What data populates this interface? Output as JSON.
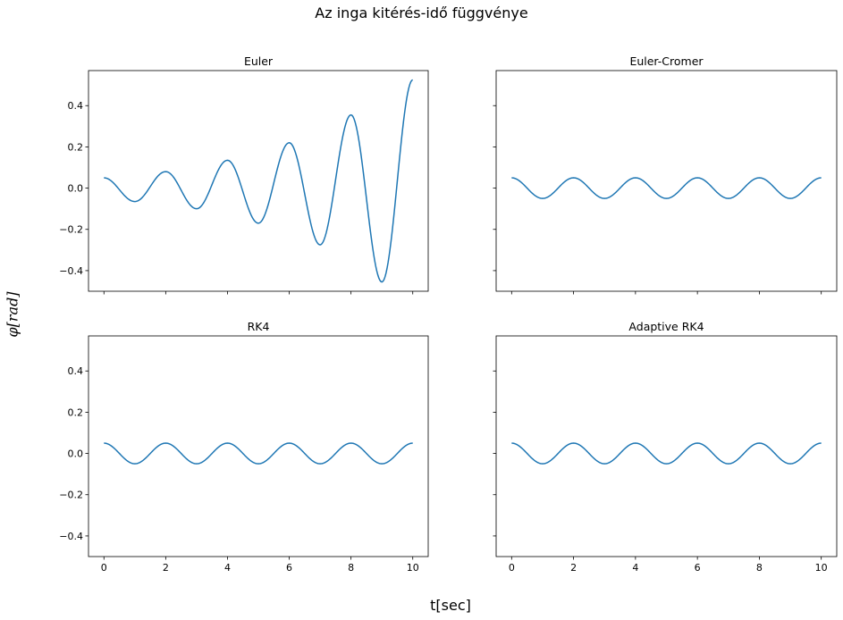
{
  "figure": {
    "suptitle": "Az inga kitérés-idő függvénye",
    "xlabel": "t[sec]",
    "ylabel_symbol": "φ",
    "ylabel_unit": "[rad]"
  },
  "colors": {
    "line": "#1f77b4",
    "axes": "#000000"
  },
  "chart_data": [
    {
      "type": "line",
      "title": "Euler",
      "xlim": [
        -0.5,
        10.5
      ],
      "ylim": [
        -0.5,
        0.57
      ],
      "xticks": [
        0,
        2,
        4,
        6,
        8,
        10
      ],
      "yticks": [
        -0.4,
        -0.2,
        0.0,
        0.2,
        0.4
      ],
      "xtick_labels": [
        "0",
        "2",
        "4",
        "6",
        "8",
        "10"
      ],
      "ytick_labels": [
        "−0.4",
        "−0.2",
        "0.0",
        "0.2",
        "0.4"
      ],
      "show_x_labels": false,
      "show_y_labels": true,
      "series": [
        {
          "x": [
            0,
            0.5,
            1,
            1.5,
            2,
            2.5,
            3,
            3.5,
            4,
            4.5,
            5,
            5.5,
            6,
            6.5,
            7,
            7.5,
            8,
            8.5,
            9,
            9.5,
            10
          ],
          "y": [
            0.05,
            0.0,
            -0.065,
            0.0,
            0.08,
            0.0,
            -0.1,
            0.0,
            0.135,
            0.0,
            -0.17,
            0.0,
            0.22,
            0.0,
            -0.275,
            0.0,
            0.355,
            0.0,
            -0.455,
            0.0,
            0.525
          ]
        }
      ]
    },
    {
      "type": "line",
      "title": "Euler-Cromer",
      "xlim": [
        -0.5,
        10.5
      ],
      "ylim": [
        -0.5,
        0.57
      ],
      "xticks": [
        0,
        2,
        4,
        6,
        8,
        10
      ],
      "yticks": [
        -0.4,
        -0.2,
        0.0,
        0.2,
        0.4
      ],
      "xtick_labels": [
        "0",
        "2",
        "4",
        "6",
        "8",
        "10"
      ],
      "ytick_labels": [
        "−0.4",
        "−0.2",
        "0.0",
        "0.2",
        "0.4"
      ],
      "show_x_labels": false,
      "show_y_labels": false,
      "series": [
        {
          "x": [
            0,
            0.5,
            1,
            1.5,
            2,
            2.5,
            3,
            3.5,
            4,
            4.5,
            5,
            5.5,
            6,
            6.5,
            7,
            7.5,
            8,
            8.5,
            9,
            9.5,
            10
          ],
          "y": [
            0.05,
            0.0,
            -0.05,
            0.0,
            0.05,
            0.0,
            -0.05,
            0.0,
            0.05,
            0.0,
            -0.05,
            0.0,
            0.05,
            0.0,
            -0.05,
            0.0,
            0.05,
            0.0,
            -0.05,
            0.0,
            0.05
          ]
        }
      ]
    },
    {
      "type": "line",
      "title": "RK4",
      "xlim": [
        -0.5,
        10.5
      ],
      "ylim": [
        -0.5,
        0.57
      ],
      "xticks": [
        0,
        2,
        4,
        6,
        8,
        10
      ],
      "yticks": [
        -0.4,
        -0.2,
        0.0,
        0.2,
        0.4
      ],
      "xtick_labels": [
        "0",
        "2",
        "4",
        "6",
        "8",
        "10"
      ],
      "ytick_labels": [
        "−0.4",
        "−0.2",
        "0.0",
        "0.2",
        "0.4"
      ],
      "show_x_labels": true,
      "show_y_labels": true,
      "series": [
        {
          "x": [
            0,
            0.5,
            1,
            1.5,
            2,
            2.5,
            3,
            3.5,
            4,
            4.5,
            5,
            5.5,
            6,
            6.5,
            7,
            7.5,
            8,
            8.5,
            9,
            9.5,
            10
          ],
          "y": [
            0.05,
            0.0,
            -0.05,
            0.0,
            0.05,
            0.0,
            -0.05,
            0.0,
            0.05,
            0.0,
            -0.05,
            0.0,
            0.05,
            0.0,
            -0.05,
            0.0,
            0.05,
            0.0,
            -0.05,
            0.0,
            0.05
          ]
        }
      ]
    },
    {
      "type": "line",
      "title": "Adaptive RK4",
      "xlim": [
        -0.5,
        10.5
      ],
      "ylim": [
        -0.5,
        0.57
      ],
      "xticks": [
        0,
        2,
        4,
        6,
        8,
        10
      ],
      "yticks": [
        -0.4,
        -0.2,
        0.0,
        0.2,
        0.4
      ],
      "xtick_labels": [
        "0",
        "2",
        "4",
        "6",
        "8",
        "10"
      ],
      "ytick_labels": [
        "−0.4",
        "−0.2",
        "0.0",
        "0.2",
        "0.4"
      ],
      "show_x_labels": true,
      "show_y_labels": false,
      "series": [
        {
          "x": [
            0,
            0.5,
            1,
            1.5,
            2,
            2.5,
            3,
            3.5,
            4,
            4.5,
            5,
            5.5,
            6,
            6.5,
            7,
            7.5,
            8,
            8.5,
            9,
            9.5,
            10
          ],
          "y": [
            0.05,
            0.0,
            -0.05,
            0.0,
            0.05,
            0.0,
            -0.05,
            0.0,
            0.05,
            0.0,
            -0.05,
            0.0,
            0.05,
            0.0,
            -0.05,
            0.0,
            0.05,
            0.0,
            -0.05,
            0.0,
            0.05
          ]
        }
      ]
    }
  ]
}
